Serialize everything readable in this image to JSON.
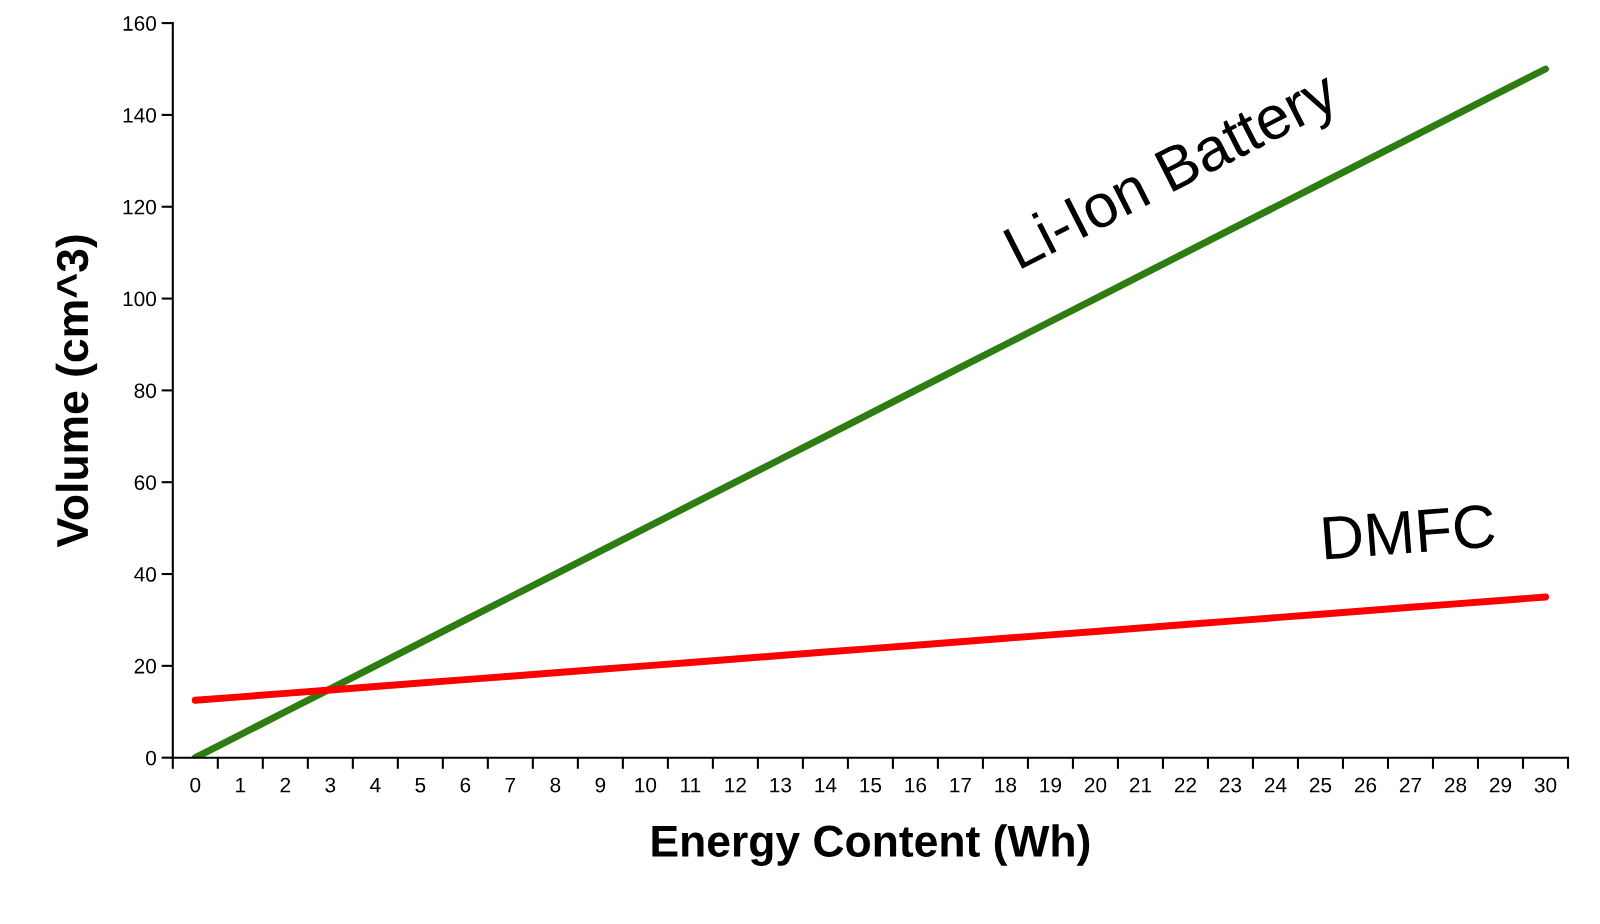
{
  "chart_data": {
    "type": "line",
    "xlabel": "Energy Content (Wh)",
    "ylabel": "Volume (cm^3)",
    "categories": [
      "0",
      "1",
      "2",
      "3",
      "4",
      "5",
      "6",
      "7",
      "8",
      "9",
      "10",
      "11",
      "12",
      "13",
      "14",
      "15",
      "16",
      "17",
      "18",
      "19",
      "20",
      "21",
      "22",
      "23",
      "24",
      "25",
      "26",
      "27",
      "28",
      "29",
      "30"
    ],
    "series": [
      {
        "name": "Li-Ion Battery",
        "color": "#2e7d12",
        "values": [
          0,
          5,
          10,
          15,
          20,
          25,
          30,
          35,
          40,
          45,
          50,
          55,
          60,
          65,
          70,
          75,
          80,
          85,
          90,
          95,
          100,
          105,
          110,
          115,
          120,
          125,
          130,
          135,
          140,
          145,
          150
        ]
      },
      {
        "name": "DMFC",
        "color": "#ff0000",
        "values": [
          12.5,
          13.25,
          14,
          14.75,
          15.5,
          16.25,
          17,
          17.75,
          18.5,
          19.25,
          20,
          20.75,
          21.5,
          22.25,
          23,
          23.75,
          24.5,
          25.25,
          26,
          26.75,
          27.5,
          28.25,
          29,
          29.75,
          30.5,
          31.25,
          32,
          32.75,
          33.5,
          34.25,
          35
        ]
      }
    ],
    "ylim": [
      0,
      160
    ],
    "yticks": [
      0,
      20,
      40,
      60,
      80,
      100,
      120,
      140,
      160
    ],
    "grid": false,
    "legend": false,
    "marker": "none",
    "line_style": "solid"
  }
}
